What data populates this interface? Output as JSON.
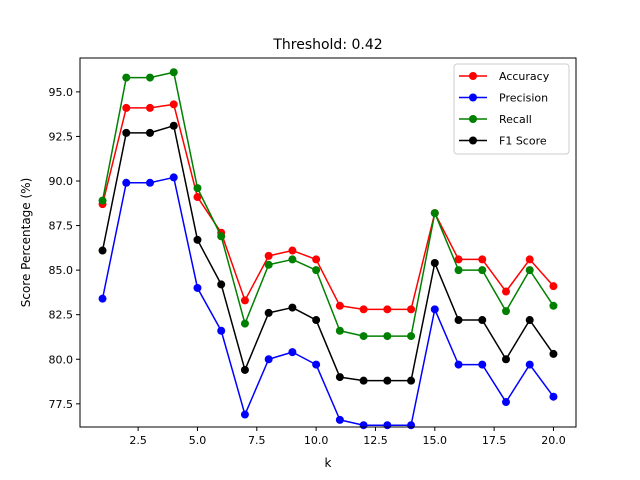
{
  "chart_data": {
    "type": "line",
    "title": "Threshold: 0.42",
    "xlabel": "k",
    "ylabel": "Score Percentage (%)",
    "xlim": [
      0.05,
      20.95
    ],
    "ylim": [
      76.2,
      96.9
    ],
    "xticks": [
      "2.5",
      "5.0",
      "7.5",
      "10.0",
      "12.5",
      "15.0",
      "17.5",
      "20.0"
    ],
    "xtick_values": [
      2.5,
      5.0,
      7.5,
      10.0,
      12.5,
      15.0,
      17.5,
      20.0
    ],
    "yticks": [
      "77.5",
      "80.0",
      "82.5",
      "85.0",
      "87.5",
      "90.0",
      "92.5",
      "95.0"
    ],
    "ytick_values": [
      77.5,
      80.0,
      82.5,
      85.0,
      87.5,
      90.0,
      92.5,
      95.0
    ],
    "grid": false,
    "legend_position": "top-right",
    "marker": "circle",
    "x": [
      1,
      2,
      3,
      4,
      5,
      6,
      7,
      8,
      9,
      10,
      11,
      12,
      13,
      14,
      15,
      16,
      17,
      18,
      19,
      20
    ],
    "series": [
      {
        "name": "Accuracy",
        "color": "#ff0000",
        "values": [
          88.7,
          94.1,
          94.1,
          94.3,
          89.1,
          87.1,
          83.3,
          85.8,
          86.1,
          85.6,
          83.0,
          82.8,
          82.8,
          82.8,
          88.2,
          85.6,
          85.6,
          83.8,
          85.6,
          84.1
        ]
      },
      {
        "name": "Precision",
        "color": "#0000ff",
        "values": [
          83.4,
          89.9,
          89.9,
          90.2,
          84.0,
          81.6,
          76.9,
          80.0,
          80.4,
          79.7,
          76.6,
          76.3,
          76.3,
          76.3,
          82.8,
          79.7,
          79.7,
          77.6,
          79.7,
          77.9
        ]
      },
      {
        "name": "Recall",
        "color": "#008000",
        "values": [
          88.9,
          95.8,
          95.8,
          96.1,
          89.6,
          86.9,
          82.0,
          85.3,
          85.6,
          85.0,
          81.6,
          81.3,
          81.3,
          81.3,
          88.2,
          85.0,
          85.0,
          82.7,
          85.0,
          83.0
        ]
      },
      {
        "name": "F1 Score",
        "color": "#000000",
        "values": [
          86.1,
          92.7,
          92.7,
          93.1,
          86.7,
          84.2,
          79.4,
          82.6,
          82.9,
          82.2,
          79.0,
          78.8,
          78.8,
          78.8,
          85.4,
          82.2,
          82.2,
          80.0,
          82.2,
          80.3
        ]
      }
    ]
  }
}
